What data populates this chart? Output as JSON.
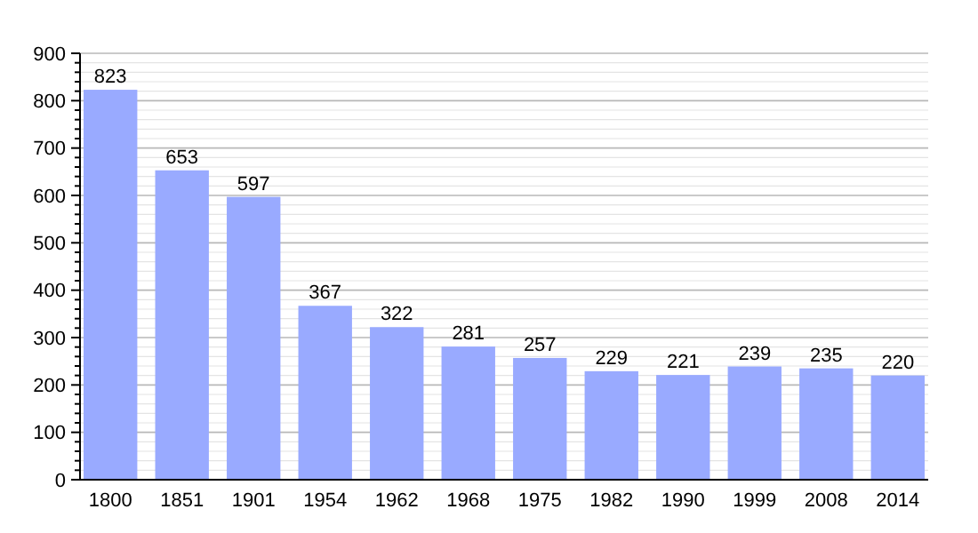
{
  "chart_data": {
    "type": "bar",
    "categories": [
      "1800",
      "1851",
      "1901",
      "1954",
      "1962",
      "1968",
      "1975",
      "1982",
      "1990",
      "1999",
      "2008",
      "2014"
    ],
    "values": [
      823,
      653,
      597,
      367,
      322,
      281,
      257,
      229,
      221,
      239,
      235,
      220
    ],
    "color": "#99aaff",
    "data_labels": true,
    "grid": "y",
    "ylim": [
      0,
      900
    ],
    "yticks": [
      0,
      {
        "value": 20,
        "label": null
      },
      {
        "value": 40,
        "label": null
      },
      {
        "value": 60,
        "label": null
      },
      {
        "value": 80,
        "label": null
      },
      100,
      {
        "value": 120,
        "label": null
      },
      {
        "value": 140,
        "label": null
      },
      {
        "value": 160,
        "label": null
      },
      {
        "value": 180,
        "label": null
      },
      200,
      {
        "value": 220,
        "label": null
      },
      {
        "value": 240,
        "label": null
      },
      {
        "value": 260,
        "label": null
      },
      {
        "value": 280,
        "label": null
      },
      300,
      {
        "value": 320,
        "label": null
      },
      {
        "value": 340,
        "label": null
      },
      {
        "value": 360,
        "label": null
      },
      {
        "value": 380,
        "label": null
      },
      400,
      {
        "value": 420,
        "label": null
      },
      {
        "value": 440,
        "label": null
      },
      {
        "value": 460,
        "label": null
      },
      {
        "value": 480,
        "label": null
      },
      500,
      {
        "value": 520,
        "label": null
      },
      {
        "value": 540,
        "label": null
      },
      {
        "value": 560,
        "label": null
      },
      {
        "value": 580,
        "label": null
      },
      600,
      {
        "value": 620,
        "label": null
      },
      {
        "value": 640,
        "label": null
      },
      {
        "value": 660,
        "label": null
      },
      {
        "value": 680,
        "label": null
      },
      700,
      {
        "value": 720,
        "label": null
      },
      {
        "value": 740,
        "label": null
      },
      {
        "value": 760,
        "label": null
      },
      {
        "value": 780,
        "label": null
      },
      800,
      {
        "value": 820,
        "label": null
      },
      {
        "value": 840,
        "label": null
      },
      {
        "value": 860,
        "label": null
      },
      {
        "value": 880,
        "label": null
      },
      900
    ]
  }
}
